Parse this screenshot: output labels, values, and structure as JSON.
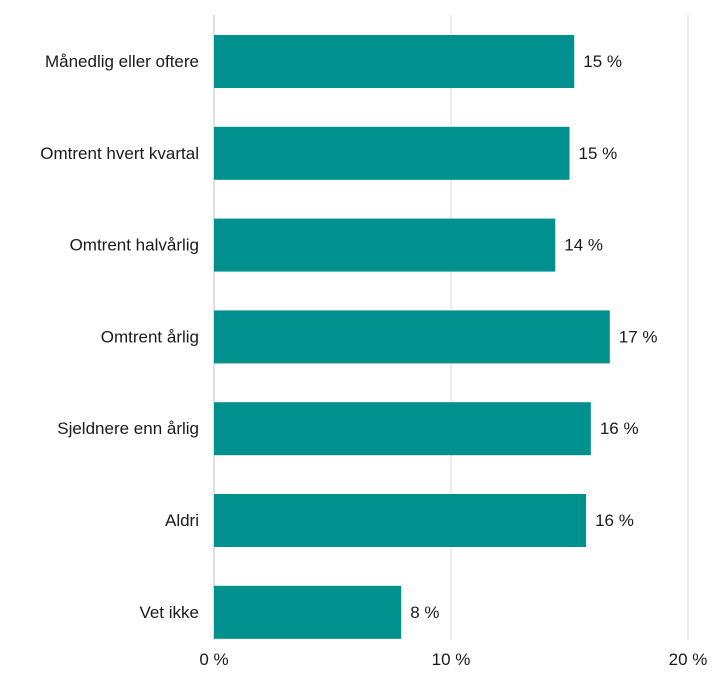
{
  "chart_data": {
    "type": "bar",
    "orientation": "horizontal",
    "categories": [
      "Månedlig eller oftere",
      "Omtrent hvert kvartal",
      "Omtrent halvårlig",
      "Omtrent årlig",
      "Sjeldnere enn årlig",
      "Aldri",
      "Vet ikke"
    ],
    "values": [
      15.2,
      15.0,
      14.4,
      16.7,
      15.9,
      15.7,
      7.9
    ],
    "value_labels": [
      "15 %",
      "15 %",
      "14 %",
      "17 %",
      "16 %",
      "16 %",
      "8 %"
    ],
    "xlim": [
      0,
      20
    ],
    "x_ticks": [
      0,
      10,
      20
    ],
    "x_tick_labels": [
      "0 %",
      "10 %",
      "20 %"
    ],
    "grid": true,
    "bar_color": "#00918f"
  }
}
